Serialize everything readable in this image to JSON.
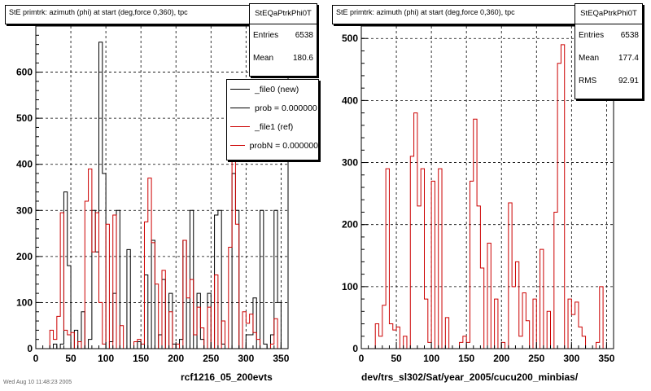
{
  "footnote": "Wed Aug 10 11:48:23 2005",
  "chart_data": [
    {
      "type": "histogram",
      "title": "StE primtrk: azimuth (phi) at start (deg,force 0,360), tpc",
      "stats": {
        "name": "StEQaPtrkPhi0T",
        "rows": [
          {
            "label": "Entries",
            "value": "6538"
          },
          {
            "label": "Mean",
            "value": "180.6"
          }
        ]
      },
      "legend": [
        {
          "label": "_file0 (new)",
          "color": "#000000"
        },
        {
          "label": "prob = 0.000000",
          "color": "#000000"
        },
        {
          "label": "_file1 (ref)",
          "color": "#cc0000"
        },
        {
          "label": "probN = 0.000000",
          "color": "#cc0000"
        }
      ],
      "run_label": "rcf1216_05_200evts",
      "xlim": [
        0,
        360
      ],
      "ylim": [
        0,
        700
      ],
      "xticks": [
        0,
        50,
        100,
        150,
        200,
        250,
        300,
        350
      ],
      "yticks": [
        0,
        100,
        200,
        300,
        400,
        500,
        600
      ],
      "bin_width": 5,
      "grid": true,
      "series": [
        {
          "name": "_file0 (new)",
          "color": "#000000",
          "bin_starts": [
            20,
            25,
            30,
            35,
            40,
            45,
            50,
            55,
            60,
            65,
            70,
            75,
            80,
            85,
            90,
            95,
            100,
            105,
            110,
            115,
            120,
            125,
            130,
            135,
            140,
            145,
            150,
            155,
            160,
            165,
            170,
            175,
            180,
            185,
            190,
            195,
            200,
            205,
            210,
            215,
            220,
            225,
            230,
            235,
            240,
            245,
            250,
            255,
            260,
            265,
            270,
            275,
            280,
            285,
            290,
            295,
            300,
            305,
            310,
            315,
            320,
            325,
            330,
            335,
            340,
            345
          ],
          "values": [
            0,
            10,
            0,
            10,
            340,
            180,
            0,
            40,
            0,
            80,
            0,
            20,
            300,
            210,
            665,
            380,
            0,
            15,
            120,
            300,
            0,
            0,
            215,
            0,
            0,
            15,
            0,
            160,
            0,
            235,
            0,
            30,
            150,
            0,
            120,
            10,
            0,
            20,
            235,
            0,
            300,
            0,
            120,
            20,
            0,
            120,
            0,
            290,
            300,
            10,
            0,
            0,
            380,
            300,
            0,
            0,
            30,
            30,
            110,
            0,
            300,
            10,
            0,
            30,
            300,
            100
          ]
        },
        {
          "name": "_file1 (ref)",
          "color": "#cc0000",
          "bin_starts": [
            15,
            20,
            25,
            30,
            35,
            40,
            45,
            50,
            55,
            60,
            65,
            70,
            75,
            80,
            85,
            90,
            95,
            100,
            105,
            110,
            115,
            120,
            125,
            130,
            135,
            140,
            145,
            150,
            155,
            160,
            165,
            170,
            175,
            180,
            185,
            190,
            195,
            200,
            205,
            210,
            215,
            220,
            225,
            230,
            235,
            240,
            245,
            250,
            255,
            260,
            265,
            270,
            275,
            280,
            285,
            290,
            295,
            300,
            305,
            310,
            315,
            320,
            325,
            330,
            335,
            340,
            345,
            350
          ],
          "values": [
            0,
            40,
            20,
            70,
            295,
            40,
            30,
            35,
            0,
            15,
            0,
            320,
            390,
            210,
            295,
            100,
            10,
            270,
            0,
            290,
            0,
            50,
            0,
            0,
            0,
            15,
            20,
            10,
            275,
            370,
            230,
            140,
            0,
            170,
            0,
            80,
            0,
            10,
            0,
            235,
            110,
            150,
            30,
            90,
            45,
            0,
            90,
            0,
            160,
            0,
            60,
            0,
            220,
            460,
            270,
            0,
            80,
            55,
            75,
            35,
            20,
            0,
            0,
            0,
            10,
            65,
            0,
            0
          ]
        }
      ]
    },
    {
      "type": "histogram",
      "title": "StE primtrk: azimuth (phi) at start (deg,force 0,360), tpc",
      "stats": {
        "name": "StEQaPtrkPhi0T",
        "rows": [
          {
            "label": "Entries",
            "value": "6538"
          },
          {
            "label": "Mean",
            "value": "177.4"
          },
          {
            "label": "RMS",
            "value": "92.91"
          }
        ]
      },
      "run_label": "dev/trs_sl302/Sat/year_2005/cucu200_minbias/",
      "xlim": [
        0,
        360
      ],
      "ylim": [
        0,
        520
      ],
      "xticks": [
        0,
        50,
        100,
        150,
        200,
        250,
        300,
        350
      ],
      "yticks": [
        0,
        100,
        200,
        300,
        400,
        500
      ],
      "bin_width": 5,
      "grid": true,
      "series": [
        {
          "name": "_file1 (ref)",
          "color": "#cc0000",
          "bin_starts": [
            15,
            20,
            25,
            30,
            35,
            40,
            45,
            50,
            55,
            60,
            65,
            70,
            75,
            80,
            85,
            90,
            95,
            100,
            105,
            110,
            115,
            120,
            125,
            130,
            135,
            140,
            145,
            150,
            155,
            160,
            165,
            170,
            175,
            180,
            185,
            190,
            195,
            200,
            205,
            210,
            215,
            220,
            225,
            230,
            235,
            240,
            245,
            250,
            255,
            260,
            265,
            270,
            275,
            280,
            285,
            290,
            295,
            300,
            305,
            310,
            315,
            320,
            325,
            330,
            335,
            340,
            345,
            350
          ],
          "values": [
            0,
            40,
            20,
            70,
            290,
            40,
            30,
            35,
            0,
            20,
            0,
            310,
            380,
            230,
            290,
            80,
            10,
            270,
            0,
            290,
            0,
            50,
            0,
            0,
            0,
            10,
            20,
            10,
            270,
            370,
            230,
            130,
            0,
            170,
            0,
            80,
            0,
            10,
            0,
            235,
            100,
            140,
            20,
            90,
            45,
            0,
            80,
            0,
            160,
            0,
            60,
            0,
            220,
            460,
            490,
            0,
            80,
            55,
            75,
            35,
            20,
            0,
            0,
            0,
            10,
            100,
            0,
            0
          ]
        }
      ]
    }
  ]
}
